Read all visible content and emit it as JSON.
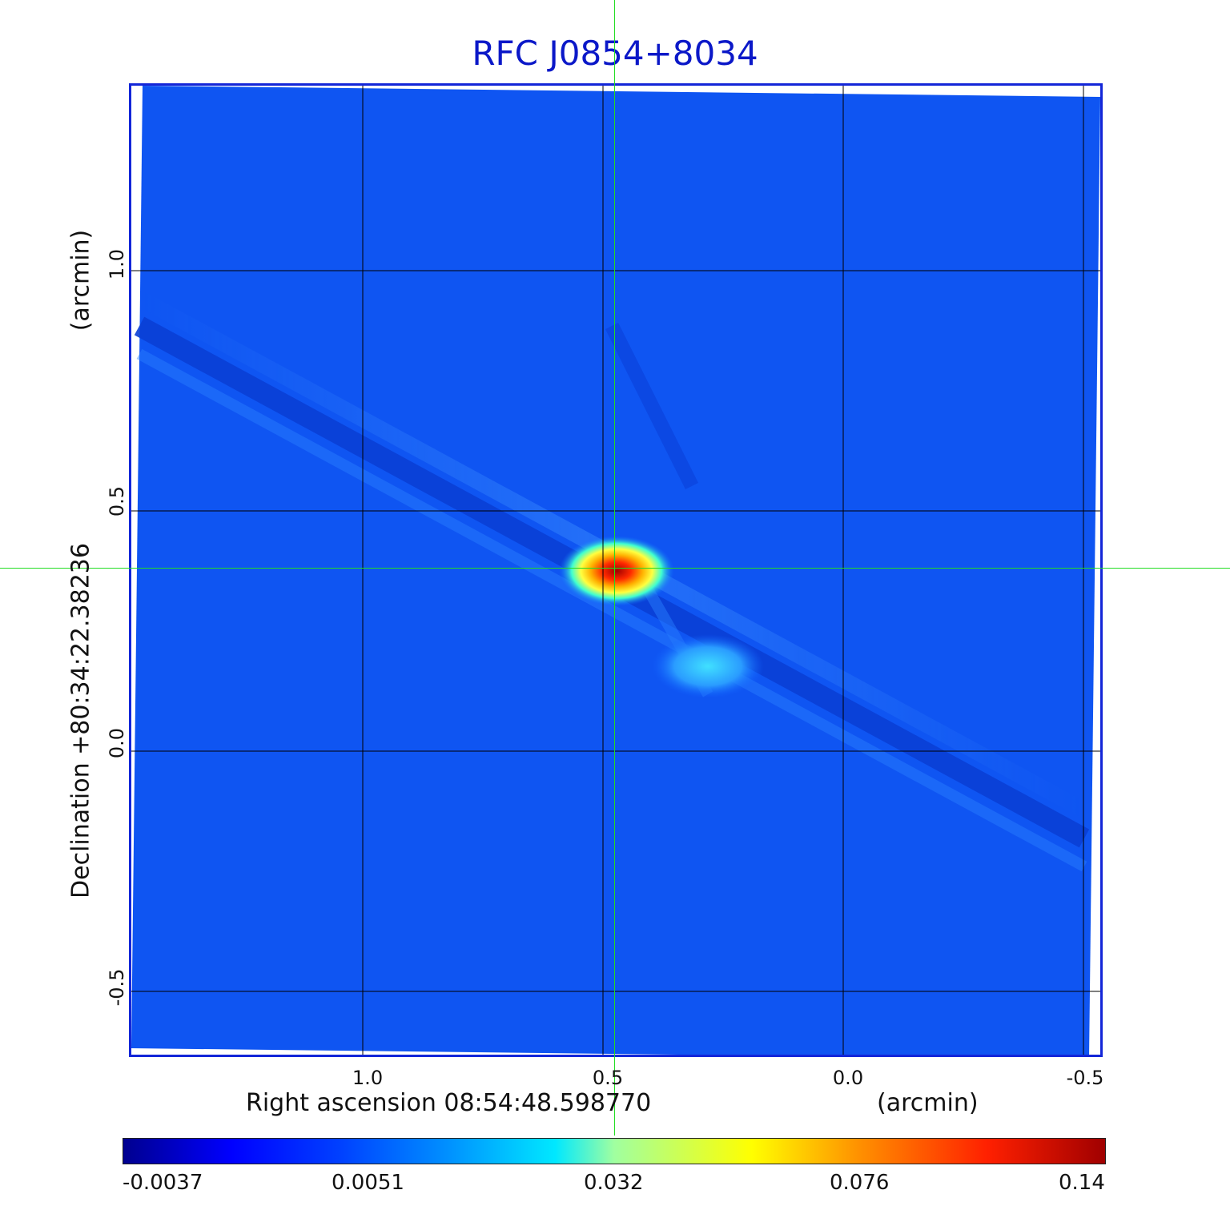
{
  "title": "RFC J0854+8034",
  "x_axis": {
    "label": "Right ascension  08:54:48.598770",
    "unit_label": "(arcmin)",
    "ticks": [
      "1.0",
      "0.5",
      "0.0",
      "-0.5"
    ]
  },
  "y_axis": {
    "label": "Declination  +80:34:22.38236",
    "unit_label": "(arcmin)",
    "ticks": [
      "1.0",
      "0.5",
      "0.0",
      "-0.5"
    ]
  },
  "colorbar": {
    "ticks": [
      "-0.0037",
      "0.0051",
      "0.032",
      "0.076",
      "0.14"
    ]
  },
  "colors": {
    "title": "#0b18c8",
    "frame": "#1326d8",
    "background_field": "#0f55f2",
    "crosshair": "#22dd22",
    "grid": "#000000"
  }
}
